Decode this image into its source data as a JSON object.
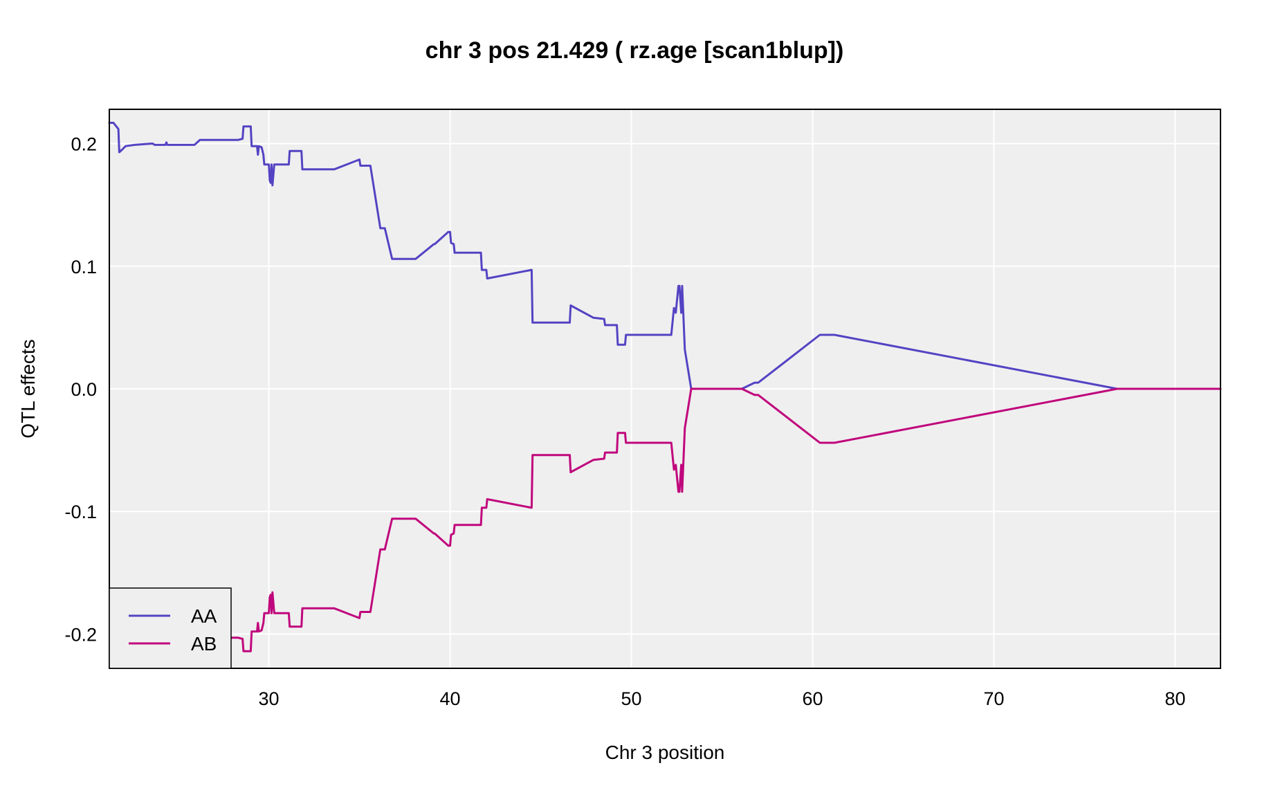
{
  "chart_data": {
    "type": "line",
    "title": "chr 3 pos 21.429 ( rz.age  [scan1blup])",
    "xlabel": "Chr 3 position",
    "ylabel": "QTL effects",
    "xlim": [
      21.2,
      82.5
    ],
    "ylim": [
      -0.228,
      0.228
    ],
    "xticks": [
      30,
      40,
      50,
      60,
      70,
      80
    ],
    "xtick_labels": [
      "30",
      "40",
      "50",
      "60",
      "70",
      "80"
    ],
    "yticks": [
      -0.2,
      -0.1,
      0.0,
      0.1,
      0.2
    ],
    "ytick_labels": [
      "-0.2",
      "-0.1",
      "0.0",
      "0.1",
      "0.2"
    ],
    "grid": true,
    "legend_position": "bottom-left",
    "series": [
      {
        "name": "AA",
        "color": "#5343c3",
        "x": [
          21.2,
          21.43,
          21.7,
          21.75,
          21.9,
          22.1,
          22.6,
          23.5,
          23.6,
          23.7,
          24.3,
          24.35,
          24.4,
          25.9,
          26.2,
          27.6,
          27.8,
          28.3,
          28.55,
          28.6,
          29.0,
          29.05,
          29.35,
          29.4,
          29.45,
          29.6,
          29.7,
          29.75,
          30.0,
          30.05,
          30.1,
          30.15,
          30.2,
          30.3,
          31.1,
          31.15,
          31.8,
          31.85,
          33.2,
          33.6,
          35.0,
          35.05,
          35.6,
          36.15,
          36.4,
          36.8,
          38.1,
          39.1,
          39.15,
          39.9,
          40.0,
          40.05,
          40.2,
          40.25,
          41.7,
          41.75,
          42.0,
          42.05,
          44.5,
          44.55,
          46.6,
          46.65,
          47.9,
          48.5,
          48.55,
          49.2,
          49.25,
          49.65,
          49.7,
          52.2,
          52.35,
          52.45,
          52.6,
          52.65,
          52.75,
          52.8,
          52.95,
          53.3,
          56.1,
          56.8,
          57.0,
          60.4,
          61.2,
          76.8,
          82.5
        ],
        "values": [
          0.217,
          0.217,
          0.212,
          0.193,
          0.195,
          0.198,
          0.199,
          0.2,
          0.2,
          0.199,
          0.199,
          0.201,
          0.199,
          0.199,
          0.203,
          0.203,
          0.203,
          0.203,
          0.204,
          0.214,
          0.214,
          0.198,
          0.198,
          0.191,
          0.198,
          0.197,
          0.191,
          0.183,
          0.183,
          0.17,
          0.168,
          0.183,
          0.166,
          0.183,
          0.183,
          0.194,
          0.194,
          0.179,
          0.179,
          0.179,
          0.187,
          0.182,
          0.182,
          0.131,
          0.131,
          0.106,
          0.106,
          0.118,
          0.118,
          0.128,
          0.128,
          0.119,
          0.118,
          0.111,
          0.111,
          0.097,
          0.097,
          0.09,
          0.097,
          0.054,
          0.054,
          0.068,
          0.058,
          0.057,
          0.052,
          0.052,
          0.036,
          0.036,
          0.044,
          0.044,
          0.066,
          0.062,
          0.084,
          0.084,
          0.062,
          0.084,
          0.032,
          0.0,
          0.0,
          0.005,
          0.005,
          0.044,
          0.044,
          0.0,
          0.0
        ]
      },
      {
        "name": "AB",
        "color": "#c0067c",
        "x": [
          27.6,
          27.8,
          28.3,
          28.55,
          28.6,
          29.0,
          29.05,
          29.35,
          29.4,
          29.45,
          29.6,
          29.7,
          29.75,
          30.0,
          30.05,
          30.1,
          30.15,
          30.2,
          30.3,
          31.1,
          31.15,
          31.8,
          31.85,
          33.2,
          33.6,
          35.0,
          35.05,
          35.6,
          36.15,
          36.4,
          36.8,
          38.1,
          39.1,
          39.15,
          39.9,
          40.0,
          40.05,
          40.2,
          40.25,
          41.7,
          41.75,
          42.0,
          42.05,
          44.5,
          44.55,
          46.6,
          46.65,
          47.9,
          48.5,
          48.55,
          49.2,
          49.25,
          49.65,
          49.7,
          52.2,
          52.35,
          52.45,
          52.6,
          52.65,
          52.75,
          52.8,
          52.95,
          53.3,
          56.1,
          56.8,
          57.0,
          60.4,
          61.2,
          76.8,
          82.5
        ],
        "values": [
          -0.203,
          -0.203,
          -0.203,
          -0.204,
          -0.214,
          -0.214,
          -0.198,
          -0.198,
          -0.191,
          -0.198,
          -0.197,
          -0.191,
          -0.183,
          -0.183,
          -0.17,
          -0.168,
          -0.183,
          -0.166,
          -0.183,
          -0.183,
          -0.194,
          -0.194,
          -0.179,
          -0.179,
          -0.179,
          -0.187,
          -0.182,
          -0.182,
          -0.131,
          -0.131,
          -0.106,
          -0.106,
          -0.118,
          -0.118,
          -0.128,
          -0.128,
          -0.119,
          -0.118,
          -0.111,
          -0.111,
          -0.097,
          -0.097,
          -0.09,
          -0.097,
          -0.054,
          -0.054,
          -0.068,
          -0.058,
          -0.057,
          -0.052,
          -0.052,
          -0.036,
          -0.036,
          -0.044,
          -0.044,
          -0.066,
          -0.062,
          -0.084,
          -0.084,
          -0.062,
          -0.084,
          -0.032,
          0.0,
          0.0,
          -0.005,
          -0.005,
          -0.044,
          -0.044,
          0.0,
          0.0
        ]
      }
    ]
  }
}
